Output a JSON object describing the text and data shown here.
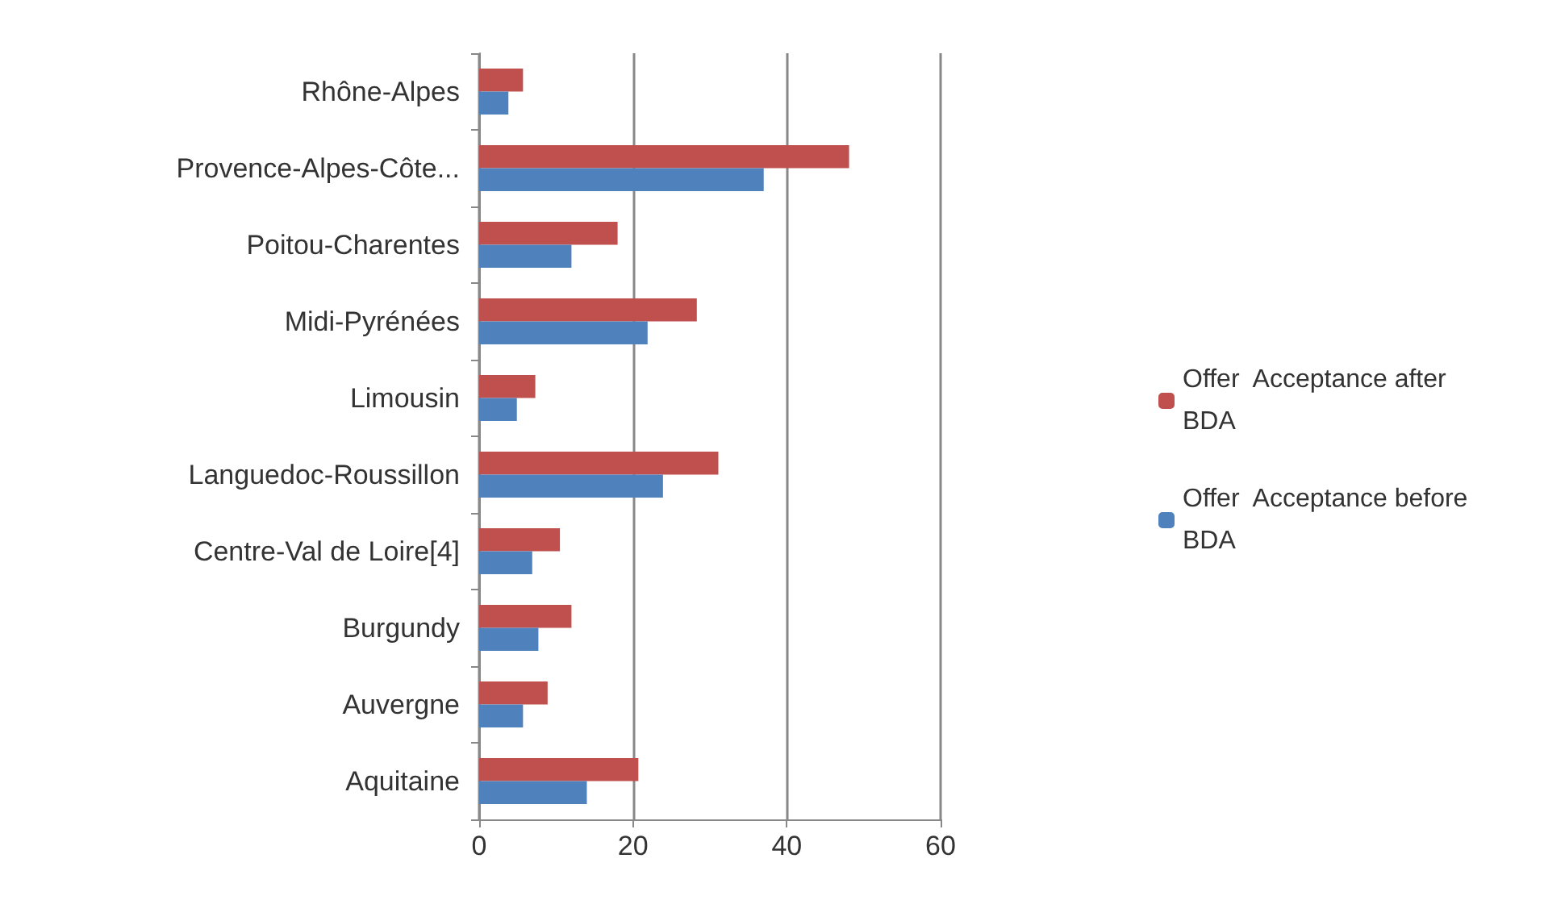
{
  "chart_data": {
    "type": "bar",
    "orientation": "horizontal",
    "categories": [
      "Rhône-Alpes",
      "Provence-Alpes-Côte...",
      "Poitou-Charentes",
      "Midi-Pyrénées",
      "Limousin",
      "Languedoc-Roussillon",
      "Centre-Val de Loire[4]",
      "Burgundy",
      "Auvergne",
      "Aquitaine"
    ],
    "series": [
      {
        "name": "Offer  Acceptance after BDA",
        "color": "#c0504d",
        "values": [
          5.7,
          48.1,
          18.0,
          28.3,
          7.3,
          31.1,
          10.5,
          12.0,
          8.9,
          20.7
        ]
      },
      {
        "name": "Offer  Acceptance before BDA",
        "color": "#4f81bd",
        "values": [
          3.8,
          37.0,
          12.0,
          21.9,
          4.9,
          23.9,
          6.9,
          7.7,
          5.7,
          14.0
        ]
      }
    ],
    "xlim": [
      0,
      60
    ],
    "xticks": [
      0,
      20,
      40,
      60
    ],
    "grid": "x",
    "legend": "right"
  }
}
